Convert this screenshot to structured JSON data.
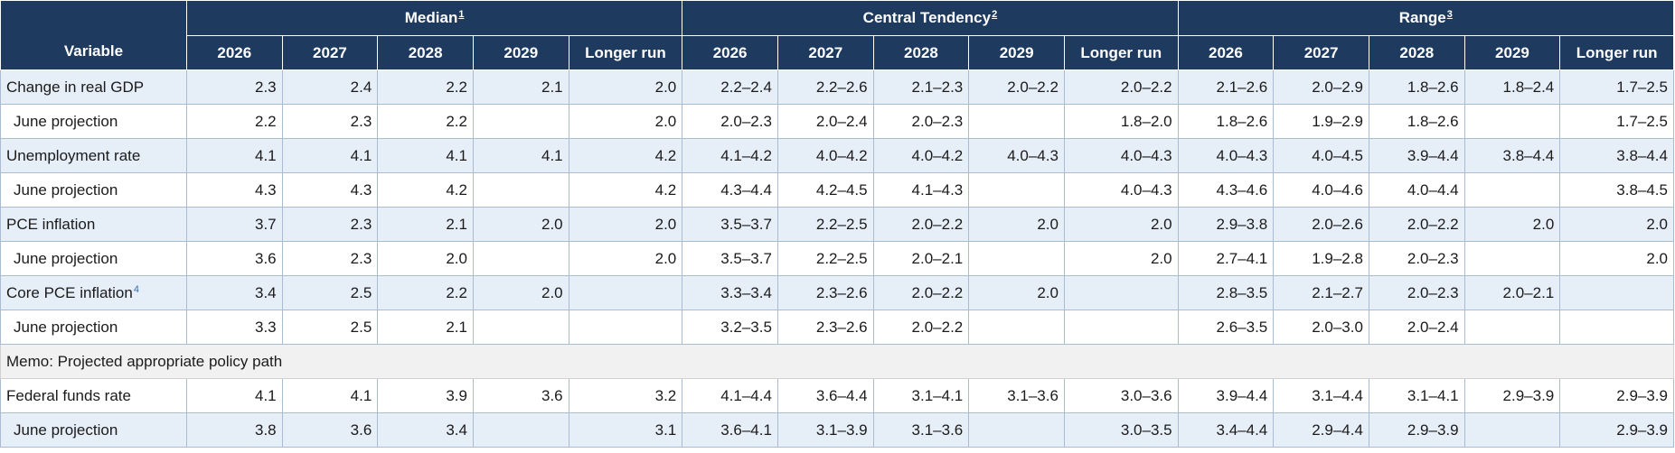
{
  "header": {
    "variable_label": "Variable",
    "groups": [
      {
        "label": "Median",
        "footnote": "1"
      },
      {
        "label": "Central Tendency",
        "footnote": "2"
      },
      {
        "label": "Range",
        "footnote": "3"
      }
    ],
    "years": [
      "2026",
      "2027",
      "2028",
      "2029",
      "Longer run"
    ]
  },
  "rows": [
    {
      "label": "Change in real GDP",
      "footnote": "",
      "sub": false,
      "median": [
        "2.3",
        "2.4",
        "2.2",
        "2.1",
        "2.0"
      ],
      "central": [
        "2.2–2.4",
        "2.2–2.6",
        "2.1–2.3",
        "2.0–2.2",
        "2.0–2.2"
      ],
      "range": [
        "2.1–2.6",
        "2.0–2.9",
        "1.8–2.6",
        "1.8–2.4",
        "1.7–2.5"
      ]
    },
    {
      "label": "June projection",
      "footnote": "",
      "sub": true,
      "median": [
        "2.2",
        "2.3",
        "2.2",
        "",
        "2.0"
      ],
      "central": [
        "2.0–2.3",
        "2.0–2.4",
        "2.0–2.3",
        "",
        "1.8–2.0"
      ],
      "range": [
        "1.8–2.6",
        "1.9–2.9",
        "1.8–2.6",
        "",
        "1.7–2.5"
      ]
    },
    {
      "label": "Unemployment rate",
      "footnote": "",
      "sub": false,
      "median": [
        "4.1",
        "4.1",
        "4.1",
        "4.1",
        "4.2"
      ],
      "central": [
        "4.1–4.2",
        "4.0–4.2",
        "4.0–4.2",
        "4.0–4.3",
        "4.0–4.3"
      ],
      "range": [
        "4.0–4.3",
        "4.0–4.5",
        "3.9–4.4",
        "3.8–4.4",
        "3.8–4.4"
      ]
    },
    {
      "label": "June projection",
      "footnote": "",
      "sub": true,
      "median": [
        "4.3",
        "4.3",
        "4.2",
        "",
        "4.2"
      ],
      "central": [
        "4.3–4.4",
        "4.2–4.5",
        "4.1–4.3",
        "",
        "4.0–4.3"
      ],
      "range": [
        "4.3–4.6",
        "4.0–4.6",
        "4.0–4.4",
        "",
        "3.8–4.5"
      ]
    },
    {
      "label": "PCE inflation",
      "footnote": "",
      "sub": false,
      "median": [
        "3.7",
        "2.3",
        "2.1",
        "2.0",
        "2.0"
      ],
      "central": [
        "3.5–3.7",
        "2.2–2.5",
        "2.0–2.2",
        "2.0",
        "2.0"
      ],
      "range": [
        "2.9–3.8",
        "2.0–2.6",
        "2.0–2.2",
        "2.0",
        "2.0"
      ]
    },
    {
      "label": "June projection",
      "footnote": "",
      "sub": true,
      "median": [
        "3.6",
        "2.3",
        "2.0",
        "",
        "2.0"
      ],
      "central": [
        "3.5–3.7",
        "2.2–2.5",
        "2.0–2.1",
        "",
        "2.0"
      ],
      "range": [
        "2.7–4.1",
        "1.9–2.8",
        "2.0–2.3",
        "",
        "2.0"
      ]
    },
    {
      "label": "Core PCE inflation",
      "footnote": "4",
      "sub": false,
      "median": [
        "3.4",
        "2.5",
        "2.2",
        "2.0",
        ""
      ],
      "central": [
        "3.3–3.4",
        "2.3–2.6",
        "2.0–2.2",
        "2.0",
        ""
      ],
      "range": [
        "2.8–3.5",
        "2.1–2.7",
        "2.0–2.3",
        "2.0–2.1",
        ""
      ]
    },
    {
      "label": "June projection",
      "footnote": "",
      "sub": true,
      "median": [
        "3.3",
        "2.5",
        "2.1",
        "",
        ""
      ],
      "central": [
        "3.2–3.5",
        "2.3–2.6",
        "2.0–2.2",
        "",
        ""
      ],
      "range": [
        "2.6–3.5",
        "2.0–3.0",
        "2.0–2.4",
        "",
        ""
      ]
    }
  ],
  "memo": {
    "label": "Memo: Projected appropriate policy path"
  },
  "memo_rows": [
    {
      "label": "Federal funds rate",
      "footnote": "",
      "sub": false,
      "median": [
        "4.1",
        "4.1",
        "3.9",
        "3.6",
        "3.2"
      ],
      "central": [
        "4.1–4.4",
        "3.6–4.4",
        "3.1–4.1",
        "3.1–3.6",
        "3.0–3.6"
      ],
      "range": [
        "3.9–4.4",
        "3.1–4.4",
        "3.1–4.1",
        "2.9–3.9",
        "2.9–3.9"
      ]
    },
    {
      "label": "June projection",
      "footnote": "",
      "sub": true,
      "median": [
        "3.8",
        "3.6",
        "3.4",
        "",
        "3.1"
      ],
      "central": [
        "3.6–4.1",
        "3.1–3.9",
        "3.1–3.6",
        "",
        "3.0–3.5"
      ],
      "range": [
        "3.4–4.4",
        "2.9–4.4",
        "2.9–3.9",
        "",
        "2.9–3.9"
      ]
    }
  ]
}
